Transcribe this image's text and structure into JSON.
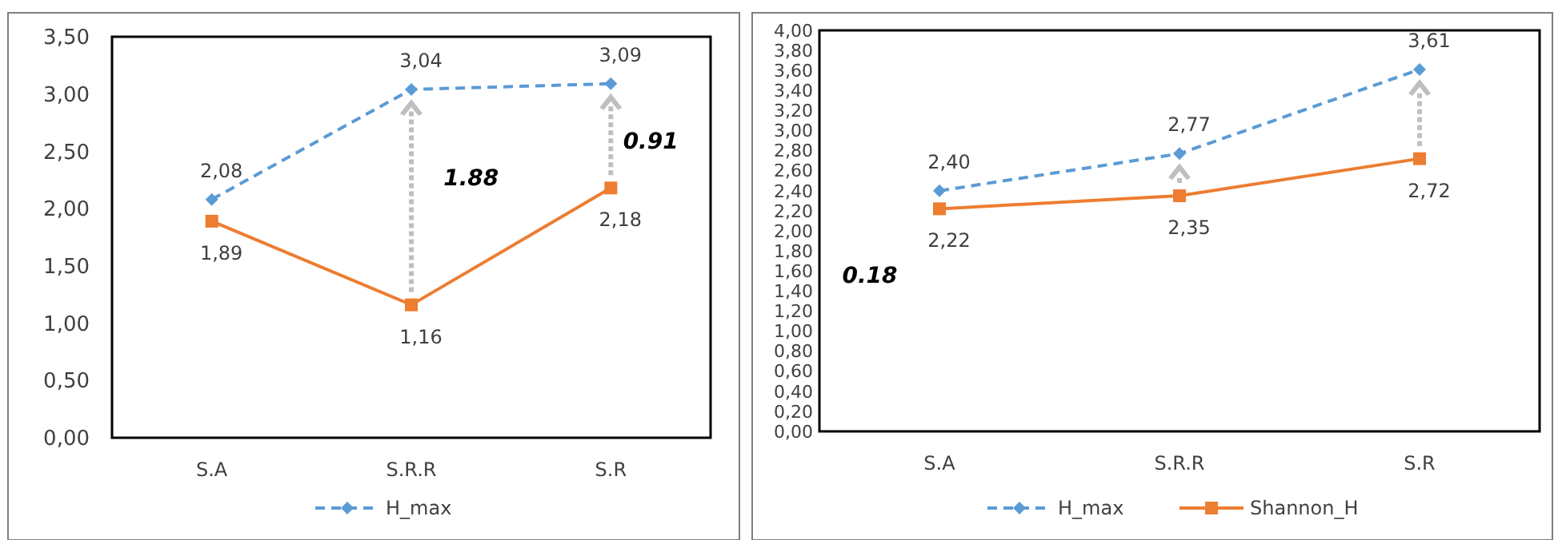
{
  "chart_data": [
    {
      "type": "line",
      "categories": [
        "S.A",
        "S.R.R",
        "S.R"
      ],
      "ylim": [
        0,
        3.5
      ],
      "yticks": [
        {
          "value": 0,
          "label": "0,00"
        },
        {
          "value": 0.5,
          "label": "0,50"
        },
        {
          "value": 1,
          "label": "1,00"
        },
        {
          "value": 1.5,
          "label": "1,50"
        },
        {
          "value": 2,
          "label": "2,00"
        },
        {
          "value": 2.5,
          "label": "2,50"
        },
        {
          "value": 3,
          "label": "3,00"
        },
        {
          "value": 3.5,
          "label": "3,50"
        }
      ],
      "series": [
        {
          "name": "H_max",
          "color": "#5b9bd5",
          "values": [
            2.08,
            3.04,
            3.09
          ],
          "value_labels": [
            "2,08",
            "3,04",
            "3,09"
          ],
          "marker": "diamond",
          "line_style": "dashed"
        },
        {
          "color": "#ed7d31",
          "values": [
            1.89,
            1.16,
            2.18
          ],
          "value_labels": [
            "1,89",
            "1,16",
            "2,18"
          ],
          "marker": "square",
          "line_style": "solid"
        }
      ],
      "annotations": [
        "1.88",
        "0.91"
      ],
      "grid": false,
      "legend": "bottom"
    },
    {
      "type": "line",
      "categories": [
        "S.A",
        "S.R.R",
        "S.R"
      ],
      "ylim": [
        0,
        4
      ],
      "yticks": [
        {
          "value": 0,
          "label": "0,00"
        },
        {
          "value": 0.2,
          "label": "0,20"
        },
        {
          "value": 0.4,
          "label": "0,40"
        },
        {
          "value": 0.6,
          "label": "0,60"
        },
        {
          "value": 0.8,
          "label": "0,80"
        },
        {
          "value": 1,
          "label": "1,00"
        },
        {
          "value": 1.2,
          "label": "1,20"
        },
        {
          "value": 1.4,
          "label": "1,40"
        },
        {
          "value": 1.6,
          "label": "1,60"
        },
        {
          "value": 1.8,
          "label": "1,80"
        },
        {
          "value": 2,
          "label": "2,00"
        },
        {
          "value": 2.2,
          "label": "2,20"
        },
        {
          "value": 2.4,
          "label": "2,40"
        },
        {
          "value": 2.6,
          "label": "2,60"
        },
        {
          "value": 2.8,
          "label": "2,80"
        },
        {
          "value": 3,
          "label": "3,00"
        },
        {
          "value": 3.2,
          "label": "3,20"
        },
        {
          "value": 3.4,
          "label": "3,40"
        },
        {
          "value": 3.6,
          "label": "3,60"
        },
        {
          "value": 3.8,
          "label": "3,80"
        },
        {
          "value": 4,
          "label": "4,00"
        }
      ],
      "series": [
        {
          "name": "H_max",
          "color": "#5b9bd5",
          "values": [
            2.4,
            2.77,
            3.61
          ],
          "value_labels": [
            "2,40",
            "2,77",
            "3,61"
          ],
          "marker": "diamond",
          "line_style": "dashed"
        },
        {
          "name": "Shannon_H",
          "color": "#ed7d31",
          "values": [
            2.22,
            2.35,
            2.72
          ],
          "value_labels": [
            "2,22",
            "2,35",
            "2,72"
          ],
          "marker": "square",
          "line_style": "solid"
        }
      ],
      "annotations": [
        "0.18"
      ],
      "grid": false,
      "legend": "bottom"
    }
  ]
}
